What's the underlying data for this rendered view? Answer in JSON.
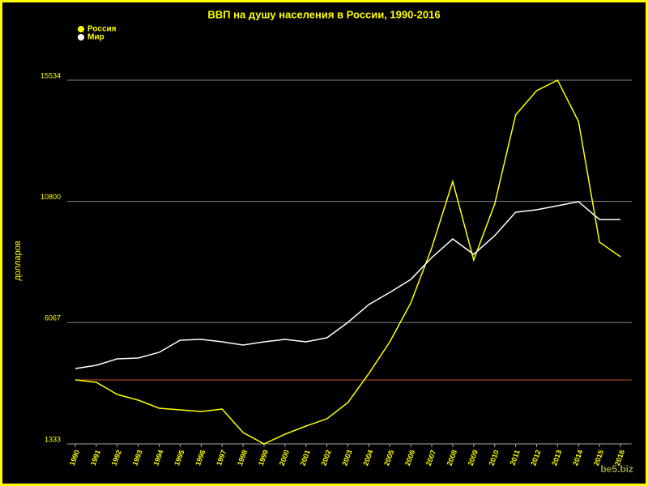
{
  "chart_data": {
    "type": "line",
    "title": "ВВП на душу населения в России, 1990-2016",
    "ylabel": "долларов",
    "watermark": "be5.biz",
    "categories": [
      "1990",
      "1991",
      "1992",
      "1993",
      "1994",
      "1995",
      "1996",
      "1997",
      "1998",
      "1999",
      "2000",
      "2001",
      "2002",
      "2003",
      "2004",
      "2005",
      "2006",
      "2007",
      "2008",
      "2009",
      "2010",
      "2011",
      "2012",
      "2013",
      "2014",
      "2015",
      "2016"
    ],
    "series": [
      {
        "name": "Россия",
        "color": "#ffff00",
        "values": [
          3831,
          3737,
          3262,
          3041,
          2725,
          2661,
          2598,
          2693,
          1776,
          1330,
          1712,
          2029,
          2313,
          2946,
          4084,
          5318,
          6836,
          8986,
          11580,
          8512,
          10694,
          14173,
          15122,
          15534,
          13920,
          9208,
          8639
        ]
      },
      {
        "name": "Мир",
        "color": "#ffffff",
        "values": [
          4274,
          4401,
          4654,
          4685,
          4907,
          5381,
          5413,
          5318,
          5191,
          5318,
          5413,
          5318,
          5476,
          6077,
          6773,
          7247,
          7753,
          8607,
          9334,
          8733,
          9461,
          10378,
          10473,
          10631,
          10789,
          10093,
          10093
        ]
      }
    ],
    "ylim": [
      1333,
      16766
    ],
    "yticks": [
      1333,
      6067,
      10800,
      15534
    ],
    "grid": true,
    "legend": "upper left"
  }
}
